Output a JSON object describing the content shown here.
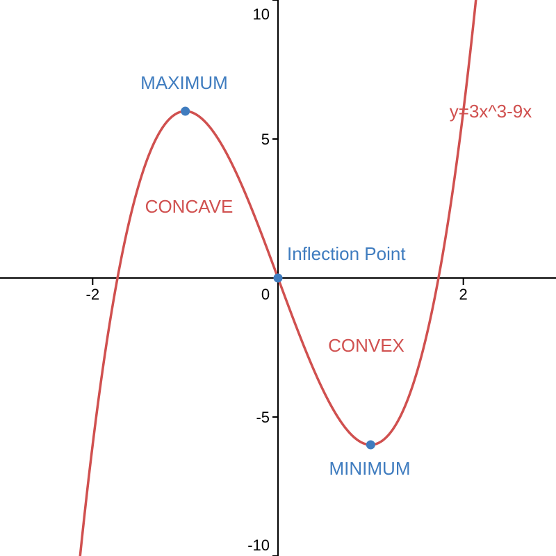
{
  "chart_data": {
    "type": "line",
    "title": "",
    "xlabel": "",
    "ylabel": "",
    "xlim": [
      -3,
      3
    ],
    "ylim": [
      -10,
      10
    ],
    "grid": false,
    "x_ticks": [
      {
        "value": -2,
        "label": "-2"
      },
      {
        "value": 0,
        "label": "0"
      },
      {
        "value": 2,
        "label": "2"
      }
    ],
    "y_ticks": [
      {
        "value": -10,
        "label": "-10"
      },
      {
        "value": -5,
        "label": "-5"
      },
      {
        "value": 5,
        "label": "5"
      },
      {
        "value": 10,
        "label": "10"
      }
    ],
    "series": [
      {
        "name": "y=3x^3-9x",
        "expression": "3x^3-9x",
        "coefficients": {
          "a": 3,
          "b": 0,
          "c": -9,
          "d": 0
        },
        "color": "#d0504f"
      }
    ],
    "points": [
      {
        "name": "maximum",
        "label": "MAXIMUM",
        "x": -1,
        "y": 6,
        "color": "#3f7cbf"
      },
      {
        "name": "inflection-point",
        "label": "Inflection Point",
        "x": 0,
        "y": 0,
        "color": "#3f7cbf"
      },
      {
        "name": "minimum",
        "label": "MINIMUM",
        "x": 1,
        "y": -6,
        "color": "#3f7cbf"
      }
    ],
    "region_labels": [
      {
        "name": "concave",
        "label": "CONCAVE",
        "color": "#d0504f"
      },
      {
        "name": "convex",
        "label": "CONVEX",
        "color": "#d0504f"
      }
    ],
    "axis_color": "#000000"
  }
}
